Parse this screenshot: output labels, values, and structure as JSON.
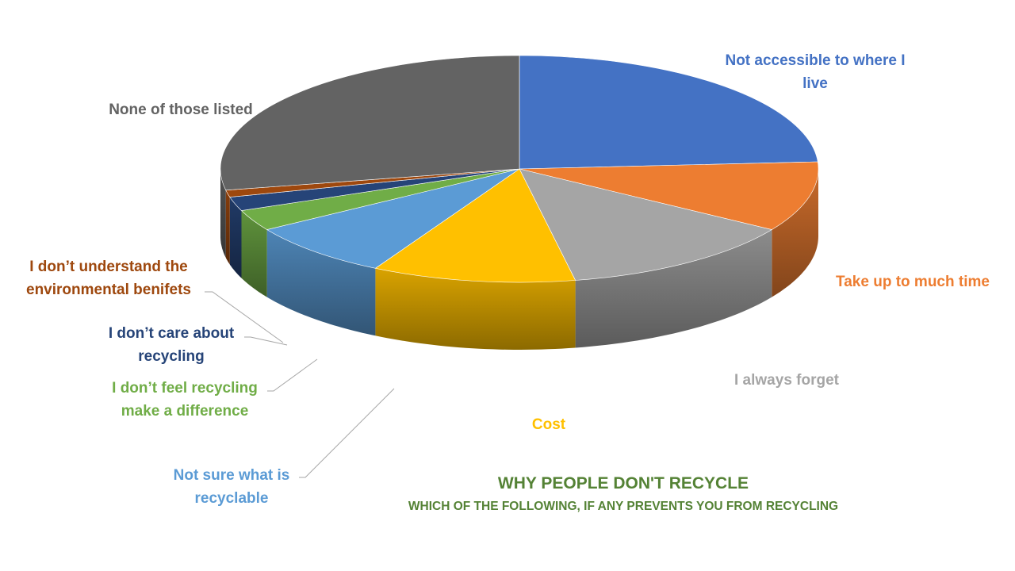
{
  "chart_data": {
    "type": "pie",
    "title": "WHY PEOPLE DON'T RECYCLE",
    "subtitle": "WHICH OF THE FOLLOWING, IF ANY PREVENTS YOU FROM RECYCLING",
    "style": "3d-exploded-none",
    "slices": [
      {
        "label": "Not accessible to where I live",
        "value": 24,
        "color": "#4472C4"
      },
      {
        "label": "Take up to much time",
        "value": 10,
        "color": "#ED7D31"
      },
      {
        "label": "I always forget",
        "value": 13,
        "color": "#A5A5A5"
      },
      {
        "label": "Cost",
        "value": 11,
        "color": "#FFC000"
      },
      {
        "label": "Not sure what is recyclable",
        "value": 8,
        "color": "#5B9BD5"
      },
      {
        "label": "I don’t feel recycling make a difference",
        "value": 3,
        "color": "#70AD47"
      },
      {
        "label": "I don’t care about recycling",
        "value": 2,
        "color": "#264478"
      },
      {
        "label": "I don’t understand the environmental benifets",
        "value": 1,
        "color": "#9E480E"
      },
      {
        "label": "None of those listed",
        "value": 28,
        "color": "#636363"
      }
    ],
    "legend": "none",
    "data_labels": "category-name"
  }
}
